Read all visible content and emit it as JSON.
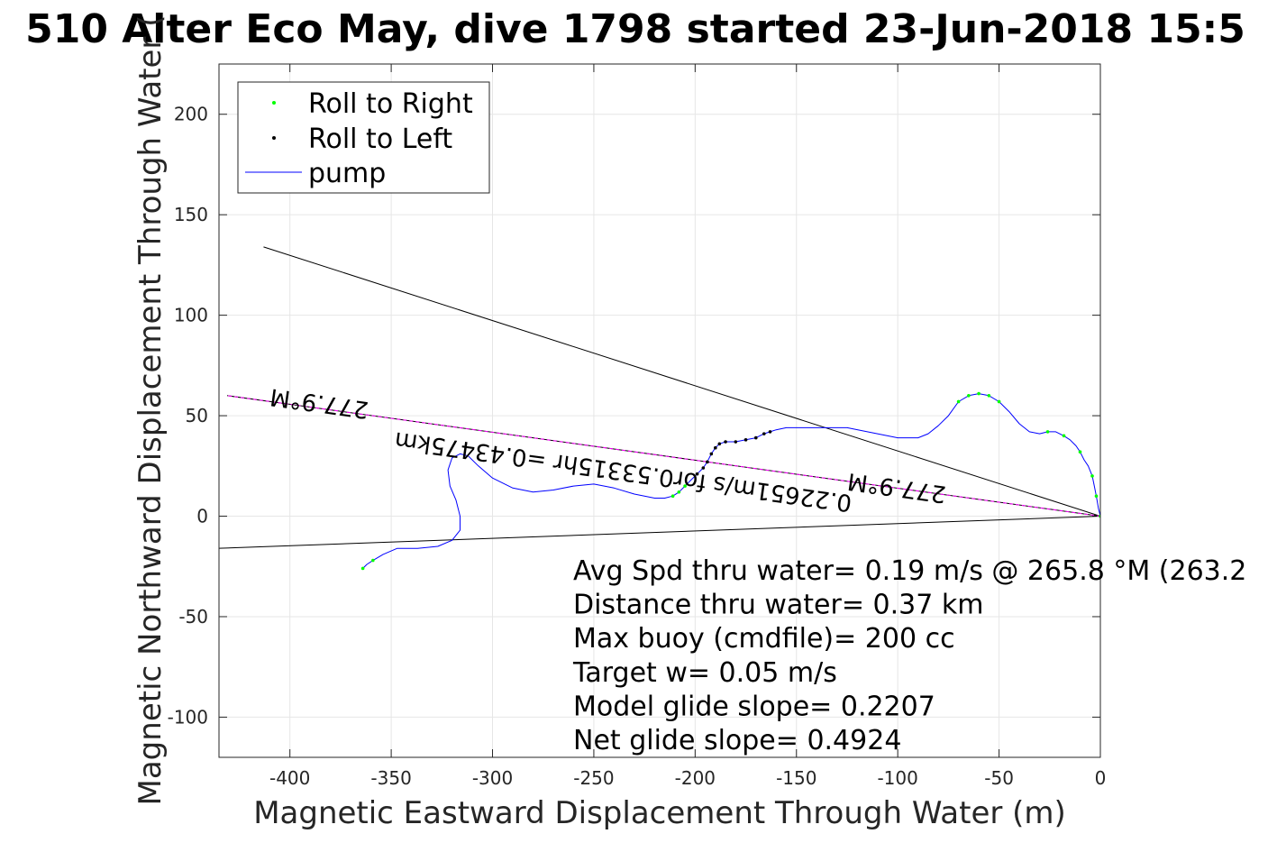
{
  "colors": {
    "roll_right": "#00ff00",
    "roll_left": "#000000",
    "pump": "#0000ff",
    "course_line": "#ff00ff",
    "grid": "#e6e6e6",
    "axes": "#262626"
  },
  "chart_data": {
    "type": "scatter",
    "title": "510 Alter Eco May, dive 1798 started 23-Jun-2018 15:5",
    "xlabel": "Magnetic Eastward Displacement Through Water (m)",
    "ylabel": "Magnetic Northward Displacement Through Water (",
    "xlim": [
      -435,
      0
    ],
    "ylim": [
      -120,
      225
    ],
    "xticks": [
      -400,
      -350,
      -300,
      -250,
      -200,
      -150,
      -100,
      -50,
      0
    ],
    "xtick_labels": [
      "-400",
      "-350",
      "-300",
      "-250",
      "-200",
      "-150",
      "-100",
      "-50",
      "0"
    ],
    "yticks": [
      -100,
      -50,
      0,
      50,
      100,
      150,
      200
    ],
    "ytick_labels": [
      "-100",
      "-50",
      "0",
      "50",
      "100",
      "150",
      "200"
    ],
    "grid": true,
    "legend_position": "top-left",
    "legend": [
      {
        "label": "Roll to Right",
        "marker": "dot",
        "color": "#00ff00"
      },
      {
        "label": "Roll to Left",
        "marker": "dot",
        "color": "#000000"
      },
      {
        "label": "pump",
        "marker": "line",
        "color": "#0000ff"
      }
    ],
    "pump_track": [
      [
        0,
        0
      ],
      [
        -1,
        4
      ],
      [
        -2,
        10
      ],
      [
        -3,
        15
      ],
      [
        -4,
        20
      ],
      [
        -6,
        25
      ],
      [
        -8,
        28
      ],
      [
        -10,
        32
      ],
      [
        -12,
        35
      ],
      [
        -15,
        38
      ],
      [
        -18,
        40
      ],
      [
        -22,
        42
      ],
      [
        -26,
        42
      ],
      [
        -30,
        41
      ],
      [
        -35,
        42
      ],
      [
        -40,
        46
      ],
      [
        -45,
        52
      ],
      [
        -50,
        57
      ],
      [
        -55,
        60
      ],
      [
        -60,
        61
      ],
      [
        -65,
        60
      ],
      [
        -70,
        57
      ],
      [
        -75,
        50
      ],
      [
        -80,
        45
      ],
      [
        -85,
        41
      ],
      [
        -90,
        39
      ],
      [
        -100,
        39
      ],
      [
        -110,
        41
      ],
      [
        -125,
        44
      ],
      [
        -140,
        44
      ],
      [
        -155,
        44
      ],
      [
        -160,
        43
      ],
      [
        -163,
        42
      ],
      [
        -166,
        41
      ],
      [
        -170,
        39
      ],
      [
        -175,
        38
      ],
      [
        -180,
        37
      ],
      [
        -185,
        37
      ],
      [
        -188,
        36
      ],
      [
        -190,
        34
      ],
      [
        -192,
        31
      ],
      [
        -194,
        27
      ],
      [
        -196,
        24
      ],
      [
        -199,
        21
      ],
      [
        -202,
        18
      ],
      [
        -205,
        15
      ],
      [
        -208,
        12
      ],
      [
        -211,
        10
      ],
      [
        -215,
        9
      ],
      [
        -220,
        9
      ],
      [
        -230,
        11
      ],
      [
        -240,
        14
      ],
      [
        -250,
        16
      ],
      [
        -260,
        15
      ],
      [
        -270,
        13
      ],
      [
        -280,
        12
      ],
      [
        -290,
        14
      ],
      [
        -300,
        19
      ],
      [
        -307,
        25
      ],
      [
        -312,
        30
      ],
      [
        -316,
        31
      ],
      [
        -320,
        29
      ],
      [
        -322,
        23
      ],
      [
        -321,
        15
      ],
      [
        -318,
        8
      ],
      [
        -316,
        0
      ],
      [
        -316,
        -7
      ],
      [
        -320,
        -12
      ],
      [
        -327,
        -15
      ],
      [
        -337,
        -16
      ],
      [
        -347,
        -16
      ],
      [
        -354,
        -19
      ],
      [
        -359,
        -22
      ],
      [
        -362,
        -24
      ],
      [
        -364,
        -26
      ]
    ],
    "roll_right_points": [
      [
        0,
        0
      ],
      [
        -2,
        10
      ],
      [
        -4,
        20
      ],
      [
        -10,
        32
      ],
      [
        -18,
        40
      ],
      [
        -26,
        42
      ],
      [
        -50,
        57
      ],
      [
        -55,
        60
      ],
      [
        -60,
        61
      ],
      [
        -65,
        60
      ],
      [
        -70,
        57
      ],
      [
        -205,
        15
      ],
      [
        -208,
        12
      ],
      [
        -211,
        10
      ],
      [
        -359,
        -22
      ],
      [
        -364,
        -26
      ]
    ],
    "roll_left_points": [
      [
        -163,
        42
      ],
      [
        -166,
        41
      ],
      [
        -170,
        39
      ],
      [
        -175,
        38
      ],
      [
        -180,
        37
      ],
      [
        -185,
        37
      ],
      [
        -188,
        36
      ],
      [
        -190,
        34
      ],
      [
        -192,
        31
      ],
      [
        -194,
        27
      ],
      [
        -196,
        24
      ],
      [
        -199,
        21
      ]
    ],
    "lines": [
      {
        "name": "upper-bound",
        "color": "#000000",
        "points": [
          [
            0,
            0
          ],
          [
            -413,
            134
          ]
        ]
      },
      {
        "name": "lower-bound",
        "color": "#000000",
        "points": [
          [
            0,
            0
          ],
          [
            -435,
            -16
          ]
        ]
      },
      {
        "name": "course",
        "color": "#ff00ff",
        "points": [
          [
            0,
            0
          ],
          [
            -431,
            60
          ]
        ]
      }
    ],
    "rotated_annotations": [
      {
        "text": "277.9°M",
        "x": -100,
        "y": 18,
        "angle": 187.9
      },
      {
        "text": "0.22651m/s for0.53315hr =0.43475km",
        "x": -235,
        "y": 26,
        "angle": 187.9
      },
      {
        "text": "277.9°M",
        "x": -385,
        "y": 60,
        "angle": 187.9
      }
    ],
    "stats": [
      "Avg Spd thru water=  0.19 m/s @ 265.8 °M (263.2",
      "Distance thru water=  0.37 km",
      "Max buoy (cmdfile)= 200 cc",
      "Target w= 0.05 m/s",
      "Model glide slope= 0.2207",
      "Net glide slope= 0.4924"
    ]
  }
}
